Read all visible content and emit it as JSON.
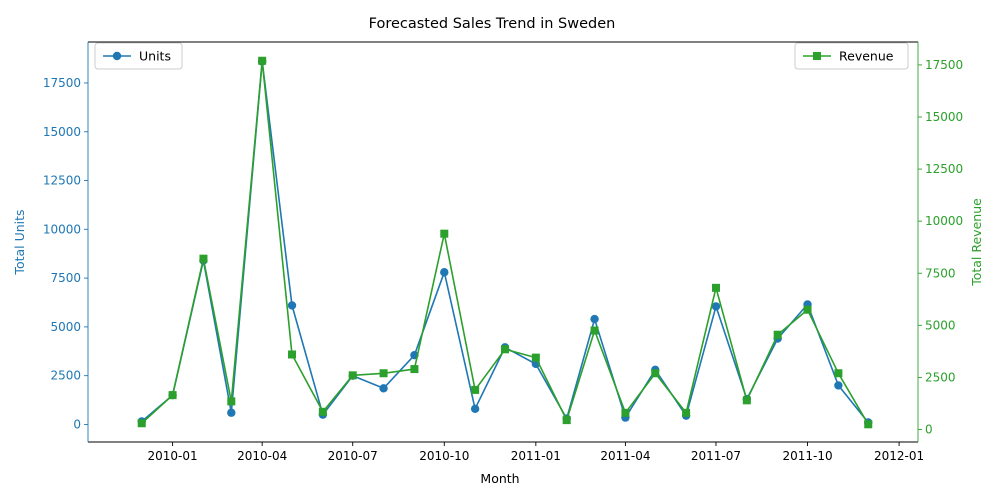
{
  "chart_data": {
    "type": "line",
    "title": "Forecasted Sales Trend in Sweden",
    "xlabel": "Month",
    "x": [
      "2009-12-01",
      "2010-01-01",
      "2010-02-01",
      "2010-03-01",
      "2010-04-01",
      "2010-05-01",
      "2010-06-01",
      "2010-07-01",
      "2010-08-01",
      "2010-09-01",
      "2010-10-01",
      "2010-11-01",
      "2010-12-01",
      "2011-01-01",
      "2011-02-01",
      "2011-03-01",
      "2011-04-01",
      "2011-05-01",
      "2011-06-01",
      "2011-07-01",
      "2011-08-01",
      "2011-09-01",
      "2011-10-01",
      "2011-11-01",
      "2011-12-01"
    ],
    "xlim": [
      "2009-10-08",
      "2012-01-20"
    ],
    "x_ticks": [
      {
        "date": "2010-01-01",
        "label": "2010-01"
      },
      {
        "date": "2010-04-01",
        "label": "2010-04"
      },
      {
        "date": "2010-07-01",
        "label": "2010-07"
      },
      {
        "date": "2010-10-01",
        "label": "2010-10"
      },
      {
        "date": "2011-01-01",
        "label": "2011-01"
      },
      {
        "date": "2011-04-01",
        "label": "2011-04"
      },
      {
        "date": "2011-07-01",
        "label": "2011-07"
      },
      {
        "date": "2011-10-01",
        "label": "2011-10"
      },
      {
        "date": "2012-01-01",
        "label": "2012-01"
      }
    ],
    "grid": false,
    "y_left": {
      "label": "Total Units",
      "color": "#1f77b4",
      "ylim": [
        -900,
        19600
      ],
      "ticks": [
        0,
        2500,
        5000,
        7500,
        10000,
        12500,
        15000,
        17500
      ]
    },
    "y_right": {
      "label": "Total Revenue",
      "color": "#2ca02c",
      "ylim": [
        -600,
        18600
      ],
      "ticks": [
        0,
        2500,
        5000,
        7500,
        10000,
        12500,
        15000,
        17500
      ]
    },
    "series": [
      {
        "name": "Units",
        "axis": "left",
        "color": "#1f77b4",
        "marker": "circle",
        "values": [
          150,
          1500,
          8400,
          600,
          18600,
          6100,
          500,
          2500,
          1850,
          3550,
          7800,
          800,
          3950,
          3100,
          300,
          5400,
          350,
          2800,
          450,
          6050,
          1300,
          4400,
          6150,
          2000,
          100
        ]
      },
      {
        "name": "Revenue",
        "axis": "right",
        "color": "#2ca02c",
        "marker": "square",
        "values": [
          300,
          1650,
          8200,
          1350,
          17700,
          3600,
          850,
          2600,
          2700,
          2900,
          9400,
          1900,
          3850,
          3450,
          450,
          4750,
          800,
          2700,
          800,
          6800,
          1400,
          4550,
          5750,
          2700,
          250
        ]
      }
    ],
    "legends": [
      {
        "entry": "Units",
        "placement": "upper-left"
      },
      {
        "entry": "Revenue",
        "placement": "upper-right"
      }
    ]
  }
}
